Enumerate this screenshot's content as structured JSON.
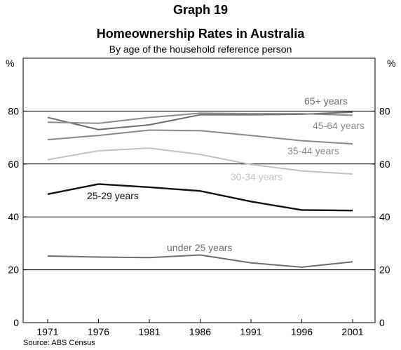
{
  "header": {
    "graph_number": "Graph 19",
    "title": "Homeownership Rates in Australia",
    "subtitle": "By age of the household reference person"
  },
  "footer": {
    "source": "Source: ABS Census"
  },
  "chart_data": {
    "type": "line",
    "title": "Homeownership Rates in Australia",
    "subtitle": "By age of the household reference person",
    "x": [
      "1971",
      "1976",
      "1981",
      "1986",
      "1991",
      "1996",
      "2001"
    ],
    "ylim": [
      0,
      100
    ],
    "yticks": [
      0,
      20,
      40,
      60,
      80
    ],
    "left_unit": "%",
    "right_unit": "%",
    "grid": "horizontal",
    "series": [
      {
        "name": "65+ years",
        "color": "#6e6e6e",
        "values": [
          77.6,
          73.0,
          74.8,
          78.6,
          78.6,
          78.8,
          79.6
        ]
      },
      {
        "name": "45-64 years",
        "color": "#8c8c8c",
        "values": [
          75.8,
          75.4,
          77.6,
          79.2,
          79.0,
          79.0,
          78.4
        ]
      },
      {
        "name": "35-44 years",
        "color": "#8a8a8a",
        "values": [
          69.2,
          70.8,
          72.8,
          72.6,
          70.8,
          68.8,
          67.6
        ]
      },
      {
        "name": "30-34 years",
        "color": "#c2c2c2",
        "values": [
          61.6,
          65.0,
          66.0,
          63.6,
          59.8,
          57.4,
          56.2
        ]
      },
      {
        "name": "25-29 years",
        "color": "#111111",
        "values": [
          48.6,
          52.4,
          51.2,
          49.8,
          45.8,
          42.6,
          42.4
        ]
      },
      {
        "name": "under 25 years",
        "color": "#707070",
        "values": [
          25.2,
          24.8,
          24.6,
          25.6,
          22.6,
          21.0,
          23.0
        ]
      }
    ]
  }
}
